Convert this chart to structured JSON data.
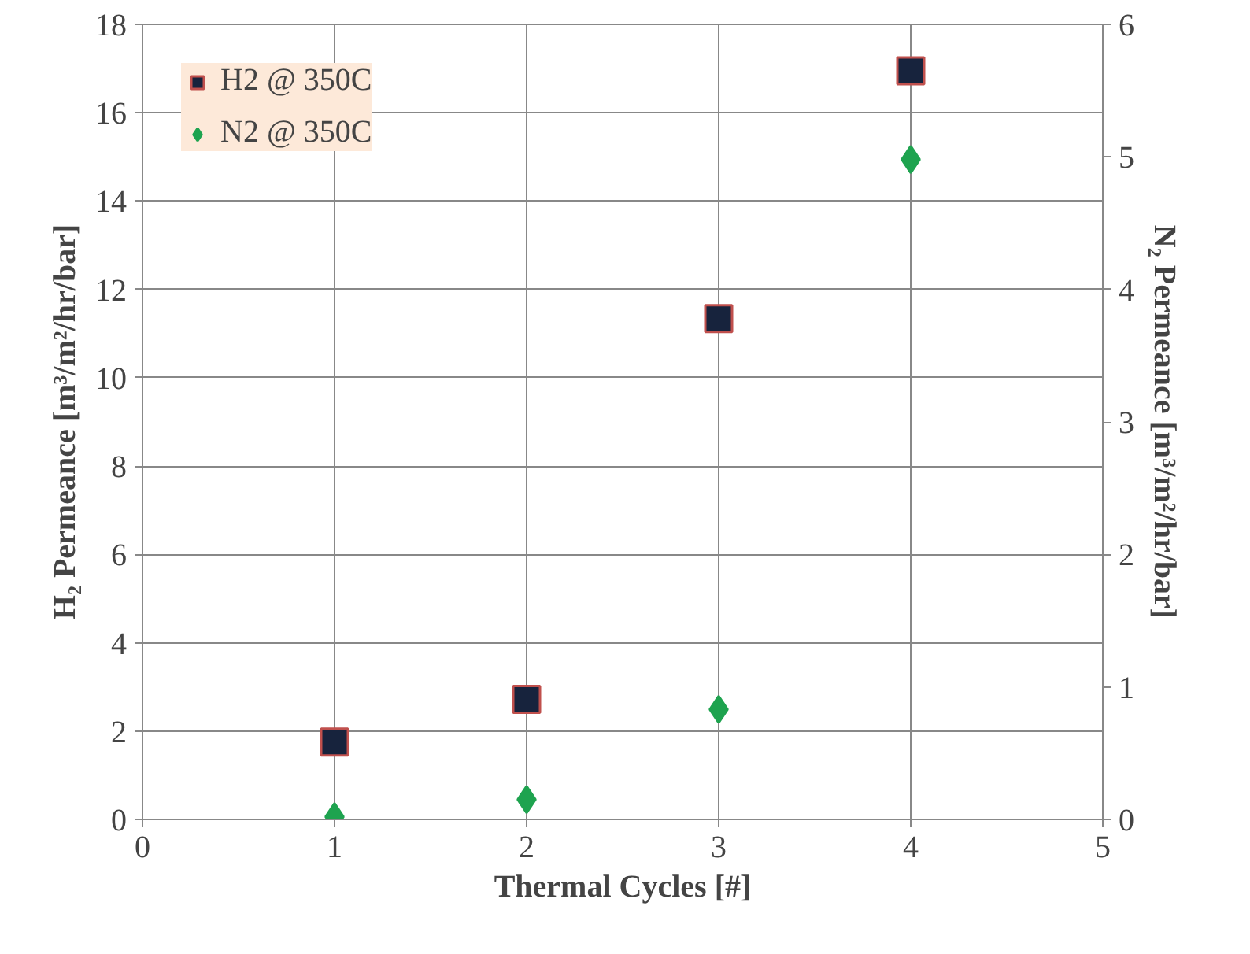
{
  "chart_data": {
    "type": "scatter",
    "xlabel": "Thermal Cycles [#]",
    "ylabel": "H₂ Permeance [m³/m²/hr/bar]",
    "y2label": "N₂ Permeance [m³/m²/hr/bar]",
    "x": [
      1,
      2,
      3,
      4
    ],
    "series": [
      {
        "name": "H2 @ 350C",
        "color": "#17233d",
        "marker": "square",
        "values": [
          1.75,
          2.72,
          11.34,
          16.95
        ]
      },
      {
        "name": "N2 @ 350C",
        "color": "#1ea34f",
        "marker": "diamond",
        "axis": "y2",
        "values": [
          0.02,
          0.15,
          0.83,
          4.98
        ]
      }
    ],
    "xlim": [
      0,
      5
    ],
    "xticks": [
      0,
      1,
      2,
      3,
      4,
      5
    ],
    "ylim": [
      0,
      18
    ],
    "yticks": [
      0,
      2,
      4,
      6,
      8,
      10,
      12,
      14,
      16,
      18
    ],
    "y2lim": [
      0,
      6
    ],
    "y2ticks": [
      0,
      1,
      2,
      3,
      4,
      5,
      6
    ],
    "grid": true,
    "legend": "top left"
  }
}
